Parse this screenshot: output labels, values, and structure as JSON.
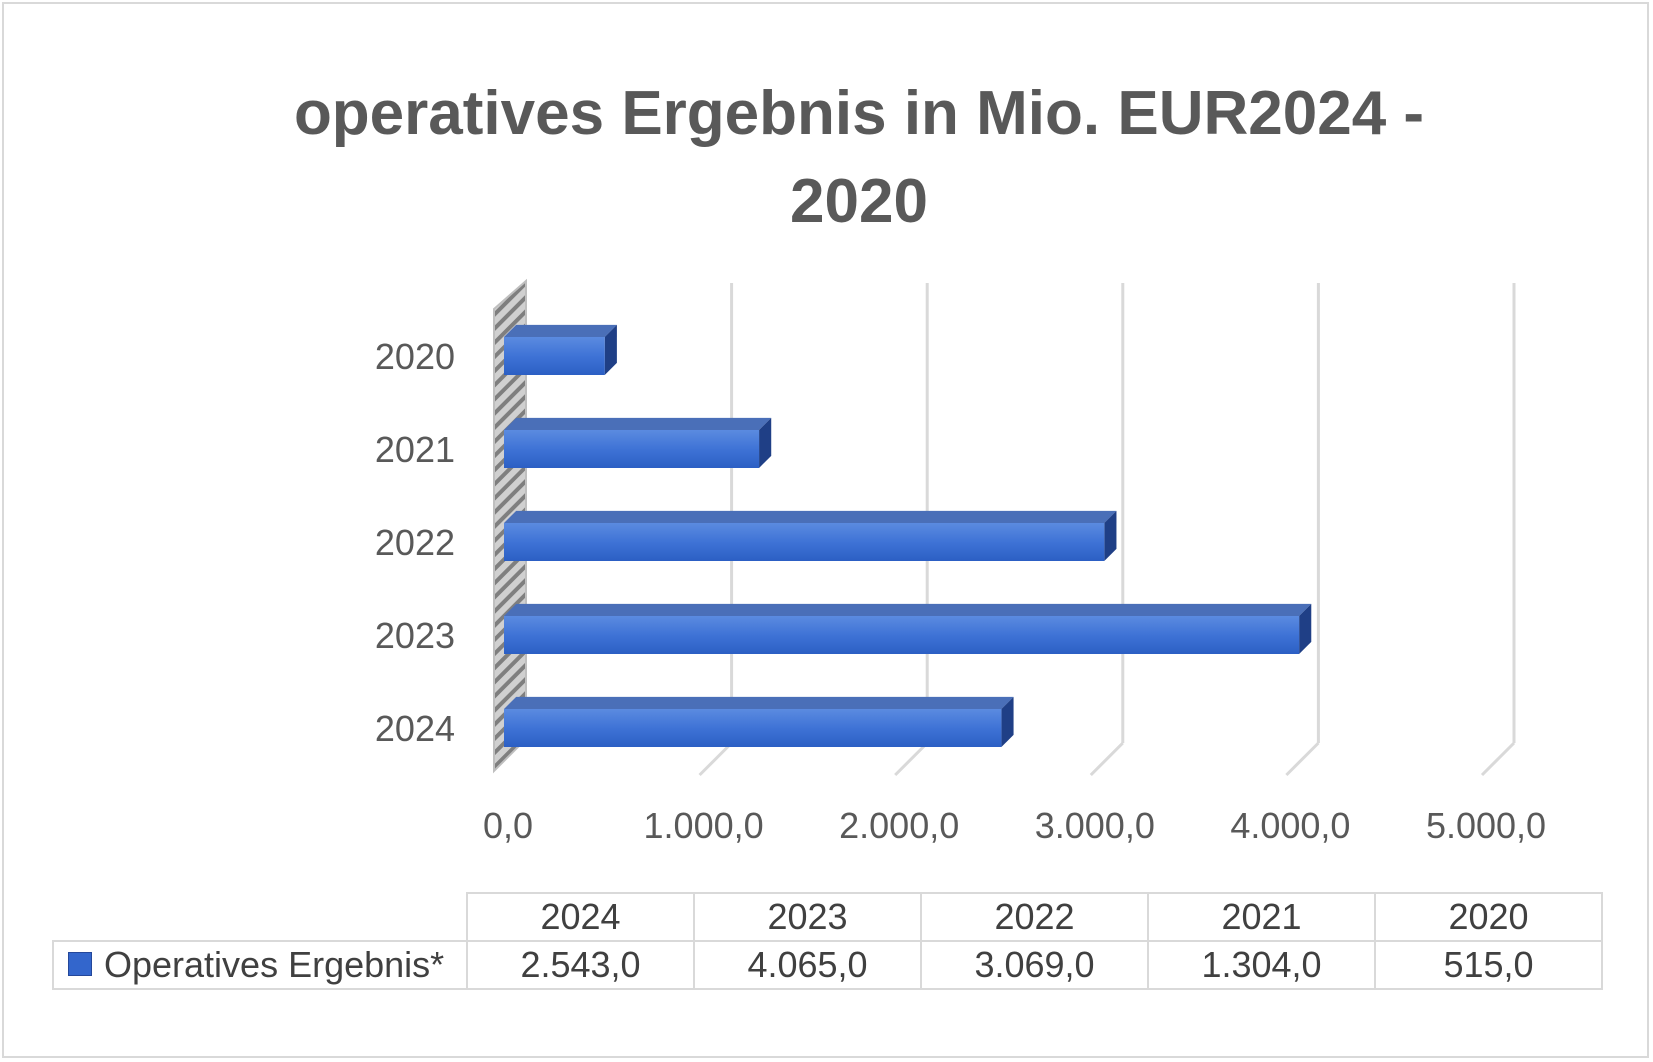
{
  "chart_data": {
    "type": "bar",
    "orientation": "horizontal",
    "title_lines": [
      "operatives Ergebnis in Mio. EUR2024 -",
      "2020"
    ],
    "categories": [
      "2024",
      "2023",
      "2022",
      "2021",
      "2020"
    ],
    "series": [
      {
        "name": "Operatives Ergebnis*",
        "values": [
          2543.0,
          4065.0,
          3069.0,
          1304.0,
          515.0
        ]
      }
    ],
    "value_labels": [
      "2.543,0",
      "4.065,0",
      "3.069,0",
      "1.304,0",
      "515,0"
    ],
    "xlim": [
      0,
      5000
    ],
    "x_ticks": [
      0,
      1000,
      2000,
      3000,
      4000,
      5000
    ],
    "x_tick_labels": [
      "0,0",
      "1.000,0",
      "2.000,0",
      "3.000,0",
      "4.000,0",
      "5.000,0"
    ],
    "grid": true,
    "style": "3d",
    "data_table": true,
    "bar_color": "#3366cc",
    "gridline_color": "#d9d9d9",
    "text_color": "#595959"
  }
}
